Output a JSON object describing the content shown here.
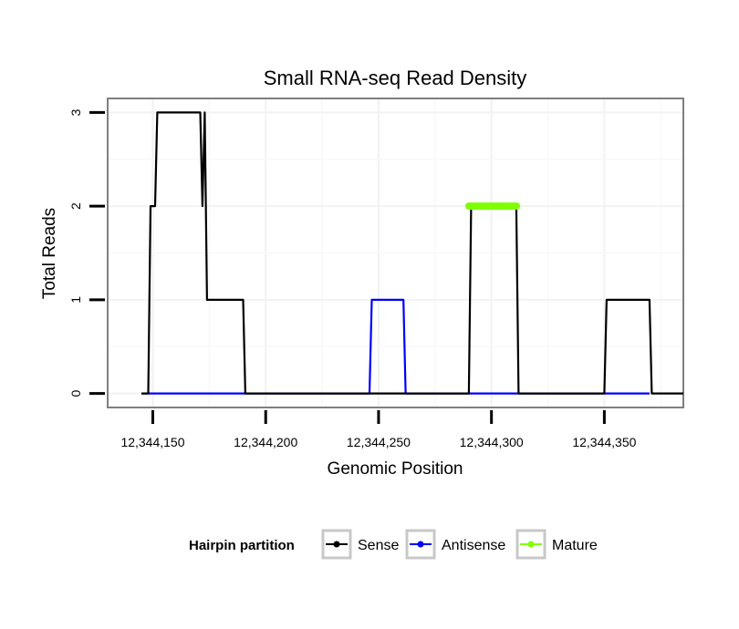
{
  "chart_data": {
    "type": "line",
    "title": "Small RNA-seq Read Density",
    "xlabel": "Genomic Position",
    "ylabel": "Total Reads",
    "xlim": [
      12344130,
      12344385
    ],
    "ylim": [
      -0.15,
      3.15
    ],
    "x_ticks": [
      12344150,
      12344200,
      12344250,
      12344300,
      12344350
    ],
    "x_tick_labels": [
      "12,344,150",
      "12,344,200",
      "12,344,250",
      "12,344,300",
      "12,344,350"
    ],
    "y_ticks": [
      0,
      1,
      2,
      3
    ],
    "y_tick_labels": [
      "0",
      "1",
      "2",
      "3"
    ],
    "grid": true,
    "legend": {
      "title": "Hairpin partition",
      "position": "bottom",
      "entries": [
        "Sense",
        "Antisense",
        "Mature"
      ]
    },
    "series": [
      {
        "name": "Sense",
        "color": "#000000",
        "x": [
          12344145,
          12344148,
          12344149,
          12344150,
          12344151,
          12344152,
          12344171,
          12344172,
          12344173,
          12344174,
          12344175,
          12344190,
          12344191,
          12344290,
          12344291,
          12344311,
          12344312,
          12344350,
          12344351,
          12344370,
          12344371,
          12344385
        ],
        "y": [
          0,
          0,
          2,
          2,
          2,
          3,
          3,
          2,
          3,
          1,
          1,
          1,
          0,
          0,
          2,
          2,
          0,
          0,
          1,
          1,
          0,
          0
        ]
      },
      {
        "name": "Antisense",
        "color": "#0000ff",
        "x": [
          12344145,
          12344246,
          12344247,
          12344261,
          12344262,
          12344370
        ],
        "y": [
          0,
          0,
          1,
          1,
          0,
          0
        ]
      },
      {
        "name": "Mature",
        "color": "#7fff00",
        "x": [
          12344290,
          12344311
        ],
        "y": [
          2,
          2
        ]
      }
    ]
  }
}
